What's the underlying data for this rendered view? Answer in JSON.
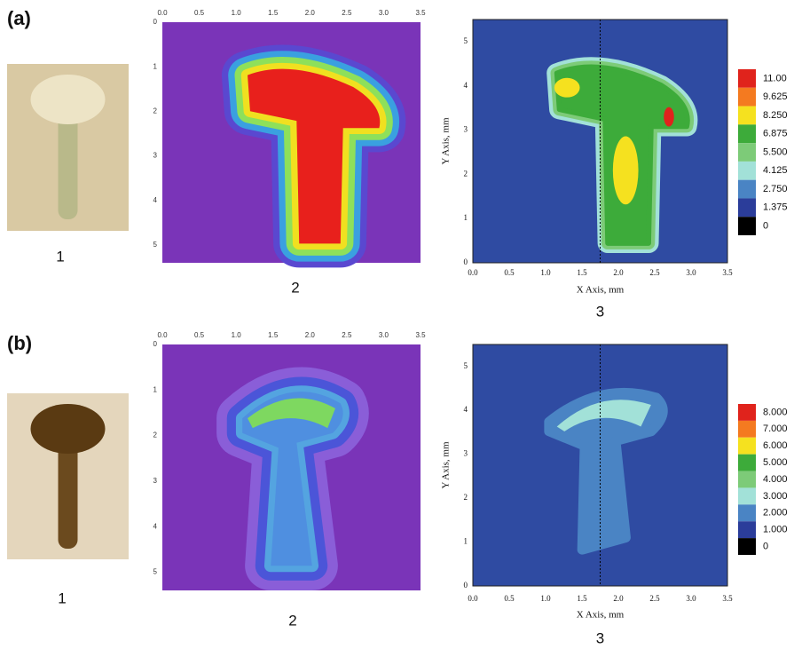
{
  "panels": [
    {
      "label": "(a)",
      "photo_caption": "1",
      "heatmap": {
        "caption": "2",
        "xticks": [
          "0.0",
          "0.5",
          "1.0",
          "1.5",
          "2.0",
          "2.5",
          "3.0",
          "3.5"
        ],
        "yticks": [
          "0",
          "1",
          "2",
          "3",
          "4",
          "5"
        ]
      },
      "contour": {
        "caption": "3",
        "x_label": "X Axis, mm",
        "y_label": "Y Axis, mm",
        "xticks": [
          "0.0",
          "0.5",
          "1.0",
          "1.5",
          "2.0",
          "2.5",
          "3.0",
          "3.5"
        ],
        "yticks": [
          "0",
          "1",
          "2",
          "3",
          "4",
          "5"
        ],
        "colorbar": [
          "11.00",
          "9.625",
          "8.250",
          "6.875",
          "5.500",
          "4.125",
          "2.750",
          "1.375",
          "0"
        ]
      }
    },
    {
      "label": "(b)",
      "photo_caption": "1",
      "heatmap": {
        "caption": "2",
        "xticks": [
          "0.0",
          "0.5",
          "1.0",
          "1.5",
          "2.0",
          "2.5",
          "3.0",
          "3.5"
        ],
        "yticks": [
          "0",
          "1",
          "2",
          "3",
          "4",
          "5"
        ]
      },
      "contour": {
        "caption": "3",
        "x_label": "X Axis, mm",
        "y_label": "Y Axis, mm",
        "xticks": [
          "0.0",
          "0.5",
          "1.0",
          "1.5",
          "2.0",
          "2.5",
          "3.0",
          "3.5"
        ],
        "yticks": [
          "0",
          "1",
          "2",
          "3",
          "4",
          "5"
        ],
        "colorbar": [
          "8.000",
          "7.000",
          "6.000",
          "5.000",
          "4.000",
          "3.000",
          "2.000",
          "1.000",
          "0"
        ]
      }
    }
  ]
}
